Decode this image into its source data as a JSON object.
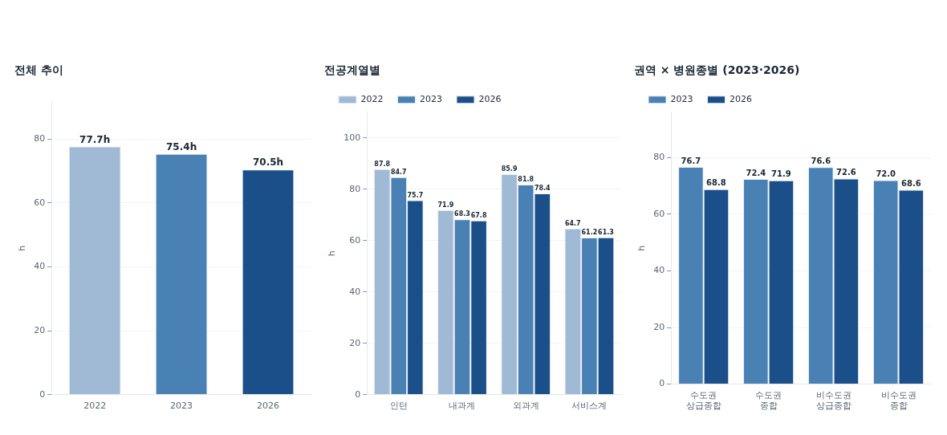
{
  "chart_data": [
    {
      "type": "bar",
      "title": "전체 추이",
      "ylabel": "h",
      "categories": [
        "2022",
        "2023",
        "2026"
      ],
      "values": [
        77.7,
        75.4,
        70.5
      ],
      "colors": [
        "#a0b9d4",
        "#4a81b5",
        "#1b4f89"
      ],
      "value_labels": [
        "77.7h",
        "75.4h",
        "70.5h"
      ],
      "ylim": [
        0,
        91.7
      ],
      "yticks": [
        0,
        20,
        40,
        60,
        80
      ],
      "grid": "y"
    },
    {
      "type": "bar",
      "title": "전공계열별",
      "ylabel": "h",
      "categories": [
        "인턴",
        "내과계",
        "외과계",
        "서비스계"
      ],
      "series": [
        {
          "name": "2022",
          "color": "#a0b9d4",
          "values": [
            87.8,
            71.9,
            85.9,
            64.7
          ]
        },
        {
          "name": "2023",
          "color": "#4a81b5",
          "values": [
            84.7,
            68.3,
            81.8,
            61.2
          ]
        },
        {
          "name": "2026",
          "color": "#1b4f89",
          "values": [
            75.7,
            67.8,
            78.4,
            61.3
          ]
        }
      ],
      "data_labels": true,
      "ylim": [
        0,
        110
      ],
      "yticks": [
        0,
        20,
        40,
        60,
        80,
        100
      ],
      "grid": "y",
      "legend": "top left"
    },
    {
      "type": "bar",
      "title": "권역 × 병원종별 (2023·2026)",
      "ylabel": "h",
      "categories": [
        "수도권\n상급종합",
        "수도권\n종합",
        "비수도권\n상급종합",
        "비수도권\n종합"
      ],
      "series": [
        {
          "name": "2023",
          "color": "#4a81b5",
          "values": [
            76.7,
            72.4,
            76.6,
            72.0
          ],
          "value_labels": [
            "76.7",
            "72.4",
            "76.6",
            "72.0"
          ]
        },
        {
          "name": "2026",
          "color": "#1b4f89",
          "values": [
            68.8,
            71.9,
            72.6,
            68.6
          ],
          "value_labels": [
            "68.8",
            "71.9",
            "72.6",
            "68.6"
          ]
        }
      ],
      "ylim": [
        0,
        96
      ],
      "yticks": [
        0,
        20,
        40,
        60,
        80
      ],
      "grid": "y",
      "legend": "top left"
    }
  ]
}
